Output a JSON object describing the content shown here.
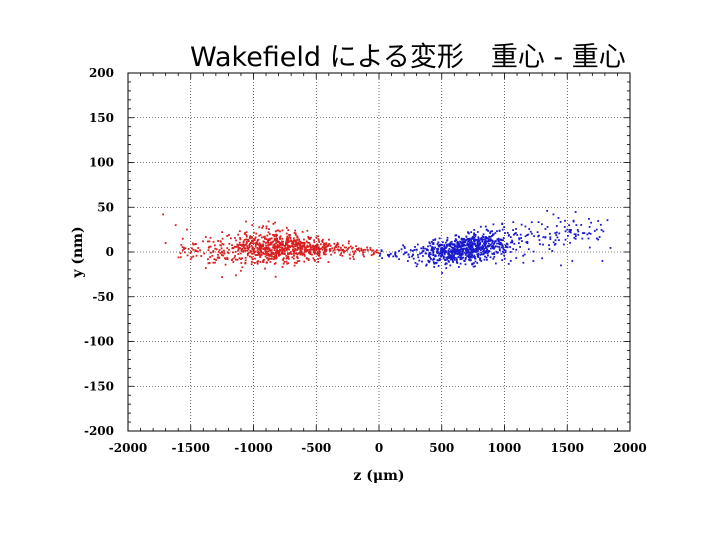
{
  "chart_data": {
    "type": "scatter",
    "title": "Wakefield による変形　重心 - 重心",
    "xlabel": "z (μm)",
    "ylabel": "y (nm)",
    "xlim": [
      -2000,
      2000
    ],
    "ylim": [
      -200,
      200
    ],
    "xticks": [
      "-2000",
      "-1500",
      "-1000",
      "-500",
      "0",
      "500",
      "1000",
      "1500",
      "2000"
    ],
    "yticks": [
      "200",
      "150",
      "100",
      "50",
      "0",
      "-50",
      "-100",
      "-150",
      "-200"
    ],
    "grid": true,
    "legend": "none",
    "series": [
      {
        "color": "#d81e1e",
        "cluster": {
          "x_range": [
            -1600,
            0
          ],
          "x_core": [
            -1150,
            -400
          ],
          "y_center_at": [
            [
              -1500,
              2
            ],
            [
              -1000,
              4
            ],
            [
              -700,
              5
            ],
            [
              -400,
              3
            ],
            [
              -100,
              1
            ]
          ],
          "y_spread": [
            [
              -1500,
              5
            ],
            [
              -1100,
              10
            ],
            [
              -800,
              9
            ],
            [
              -500,
              6
            ],
            [
              -100,
              3
            ]
          ],
          "count": 900
        },
        "outliers": [
          [
            -1720,
            42
          ],
          [
            -1700,
            10
          ],
          [
            -1620,
            30
          ],
          [
            -1530,
            25
          ],
          [
            -1500,
            -8
          ],
          [
            -1480,
            -5
          ],
          [
            -1380,
            -18
          ],
          [
            -1320,
            -12
          ],
          [
            -1250,
            -28
          ],
          [
            -1140,
            -26
          ],
          [
            -1060,
            34
          ],
          [
            -1010,
            30
          ],
          [
            -930,
            27
          ],
          [
            -880,
            22
          ],
          [
            -810,
            24
          ],
          [
            -760,
            -13
          ],
          [
            -670,
            -12
          ],
          [
            -560,
            15
          ],
          [
            -480,
            13
          ],
          [
            -330,
            10
          ],
          [
            -240,
            12
          ],
          [
            -200,
            -8
          ],
          [
            -120,
            -5
          ],
          [
            -40,
            -1
          ]
        ]
      },
      {
        "color": "#1a1acc",
        "cluster": {
          "x_range": [
            0,
            1850
          ],
          "x_core": [
            400,
            1000
          ],
          "y_center_at": [
            [
              100,
              -2
            ],
            [
              400,
              -2
            ],
            [
              700,
              4
            ],
            [
              900,
              9
            ],
            [
              1200,
              15
            ],
            [
              1500,
              22
            ]
          ],
          "y_spread": [
            [
              100,
              3
            ],
            [
              400,
              7
            ],
            [
              700,
              8
            ],
            [
              1000,
              9
            ],
            [
              1300,
              10
            ],
            [
              1600,
              8
            ]
          ],
          "count": 900
        },
        "outliers": [
          [
            20,
            2
          ],
          [
            80,
            -5
          ],
          [
            160,
            -8
          ],
          [
            230,
            -10
          ],
          [
            300,
            -16
          ],
          [
            380,
            -14
          ],
          [
            460,
            -12
          ],
          [
            540,
            -13
          ],
          [
            650,
            -13
          ],
          [
            1050,
            -10
          ],
          [
            1150,
            -12
          ],
          [
            1230,
            -10
          ],
          [
            1300,
            -7
          ],
          [
            1340,
            46
          ],
          [
            1390,
            42
          ],
          [
            1430,
            38
          ],
          [
            1450,
            -15
          ],
          [
            1480,
            28
          ],
          [
            1500,
            25
          ],
          [
            1540,
            -10
          ],
          [
            1620,
            15
          ],
          [
            1680,
            5
          ],
          [
            1780,
            -10
          ]
        ]
      }
    ]
  }
}
